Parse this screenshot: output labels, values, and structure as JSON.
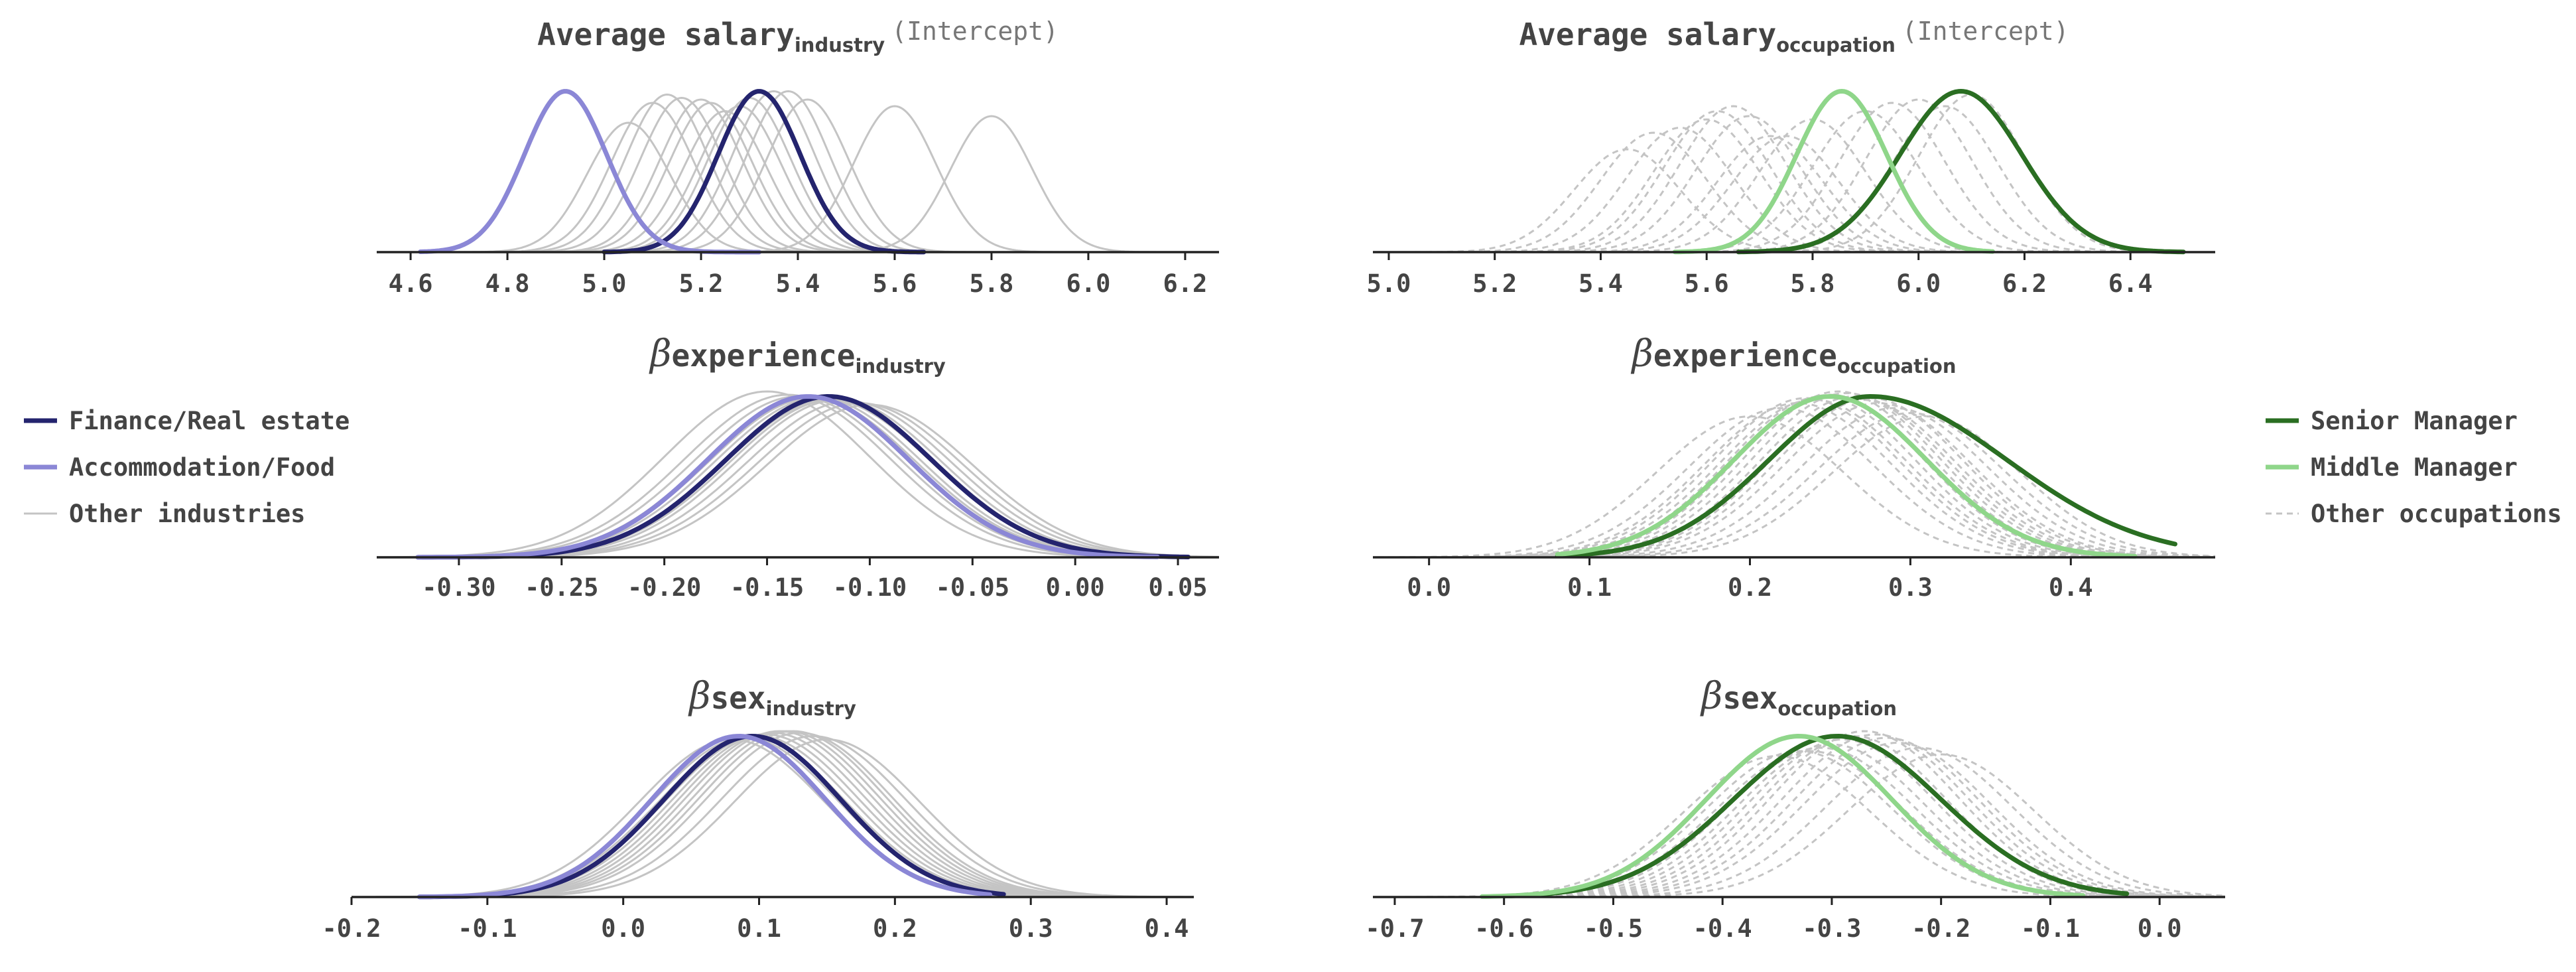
{
  "colors": {
    "finance": "#24246e",
    "accommodation": "#8b87d6",
    "senior": "#2a6e22",
    "middle": "#8fd68a",
    "other": "#c4c4c4"
  },
  "legends": [
    {
      "position": "left",
      "items": [
        {
          "label": "Finance/Real estate",
          "color": "#24246e",
          "style": "solid-thick"
        },
        {
          "label": "Accommodation/Food",
          "color": "#8b87d6",
          "style": "solid-thick"
        },
        {
          "label": "Other industries",
          "color": "#c4c4c4",
          "style": "solid-thin"
        }
      ]
    },
    {
      "position": "right",
      "items": [
        {
          "label": "Senior Manager",
          "color": "#2a6e22",
          "style": "solid-thick"
        },
        {
          "label": "Middle Manager",
          "color": "#8fd68a",
          "style": "solid-thick"
        },
        {
          "label": "Other occupations",
          "color": "#c4c4c4",
          "style": "dashed-thin"
        }
      ]
    }
  ],
  "chart_data": [
    {
      "type": "line",
      "panel": "top-left",
      "title": {
        "beta": "",
        "main": "Average salary",
        "sub": "industry",
        "extra": "(Intercept)"
      },
      "xlim": [
        4.53,
        6.27
      ],
      "ticks": [
        4.6,
        4.8,
        5.0,
        5.2,
        5.4,
        5.6,
        5.8,
        6.0,
        6.2
      ],
      "tick_labels": [
        "4.6",
        "4.8",
        "5.0",
        "5.2",
        "5.4",
        "5.6",
        "5.8",
        "6.0",
        "6.2"
      ],
      "highlight": [
        {
          "name": "Finance/Real estate",
          "color": "#24246e",
          "mean": 5.32,
          "sd": 0.085,
          "skew": 0,
          "range": [
            5.0,
            5.66
          ]
        },
        {
          "name": "Accommodation/Food",
          "color": "#8b87d6",
          "mean": 4.92,
          "sd": 0.085,
          "skew": 0,
          "range": [
            4.62,
            5.32
          ]
        }
      ],
      "others": {
        "color": "#c4c4c4",
        "dash": false,
        "sd": 0.085,
        "means": [
          5.05,
          5.1,
          5.13,
          5.16,
          5.2,
          5.22,
          5.25,
          5.28,
          5.3,
          5.35,
          5.38,
          5.42,
          5.6,
          5.8
        ],
        "peaks": [
          0.78,
          0.9,
          0.95,
          0.93,
          0.92,
          0.9,
          0.85,
          0.88,
          0.93,
          0.97,
          0.97,
          0.92,
          0.88,
          0.82
        ]
      }
    },
    {
      "type": "line",
      "panel": "top-right",
      "title": {
        "beta": "",
        "main": "Average salary",
        "sub": "occupation",
        "extra": "(Intercept)"
      },
      "xlim": [
        4.97,
        6.56
      ],
      "ticks": [
        5.0,
        5.2,
        5.4,
        5.6,
        5.8,
        6.0,
        6.2,
        6.4
      ],
      "tick_labels": [
        "5.0",
        "5.2",
        "5.4",
        "5.6",
        "5.8",
        "6.0",
        "6.2",
        "6.4"
      ],
      "highlight": [
        {
          "name": "Senior Manager",
          "color": "#2a6e22",
          "mean": 6.08,
          "sd": 0.115,
          "skew": 0,
          "range": [
            5.66,
            6.5
          ]
        },
        {
          "name": "Middle Manager",
          "color": "#8fd68a",
          "mean": 5.855,
          "sd": 0.085,
          "skew": 0,
          "range": [
            5.54,
            6.14
          ]
        }
      ],
      "others": {
        "color": "#c4c4c4",
        "dash": true,
        "sd": 0.1,
        "means": [
          5.45,
          5.5,
          5.6,
          5.62,
          5.65,
          5.68,
          5.72,
          5.8,
          5.9,
          5.95,
          6.0,
          6.05,
          6.1,
          5.55,
          5.75
        ],
        "peaks": [
          0.62,
          0.72,
          0.8,
          0.85,
          0.88,
          0.82,
          0.7,
          0.8,
          0.85,
          0.9,
          0.92,
          0.88,
          0.95,
          0.75,
          0.7
        ]
      }
    },
    {
      "type": "line",
      "panel": "middle-left",
      "title": {
        "beta": "β",
        "main": "experience",
        "sub": "industry",
        "extra": ""
      },
      "xlim": [
        -0.34,
        0.07
      ],
      "ticks": [
        -0.3,
        -0.25,
        -0.2,
        -0.15,
        -0.1,
        -0.05,
        0.0,
        0.05
      ],
      "tick_labels": [
        "-0.30",
        "-0.25",
        "-0.20",
        "-0.15",
        "-0.10",
        "-0.05",
        "0.00",
        "0.05"
      ],
      "highlight": [
        {
          "name": "Finance/Real estate",
          "color": "#24246e",
          "mean": -0.12,
          "sd": 0.05,
          "skew": 0,
          "range": [
            -0.32,
            0.055
          ]
        },
        {
          "name": "Accommodation/Food",
          "color": "#8b87d6",
          "mean": -0.13,
          "sd": 0.049,
          "skew": 0,
          "range": [
            -0.32,
            0.04
          ]
        }
      ],
      "others": {
        "color": "#c4c4c4",
        "dash": false,
        "sd": 0.05,
        "means": [
          -0.15,
          -0.14,
          -0.135,
          -0.13,
          -0.125,
          -0.12,
          -0.115,
          -0.11,
          -0.1,
          -0.105,
          -0.118,
          -0.128
        ],
        "peaks": [
          1.0,
          0.98,
          0.97,
          0.96,
          0.96,
          0.95,
          0.95,
          0.94,
          0.92,
          0.93,
          0.95,
          0.96
        ]
      }
    },
    {
      "type": "line",
      "panel": "middle-right",
      "title": {
        "beta": "β",
        "main": "experience",
        "sub": "occupation",
        "extra": ""
      },
      "xlim": [
        -0.035,
        0.49
      ],
      "ticks": [
        0.0,
        0.1,
        0.2,
        0.3,
        0.4
      ],
      "tick_labels": [
        "0.0",
        "0.1",
        "0.2",
        "0.3",
        "0.4"
      ],
      "highlight": [
        {
          "name": "Senior Manager",
          "color": "#2a6e22",
          "mean": 0.275,
          "sd": 0.063,
          "skew": 0.35,
          "range": [
            0.08,
            0.465
          ]
        },
        {
          "name": "Middle Manager",
          "color": "#8fd68a",
          "mean": 0.25,
          "sd": 0.06,
          "skew": 0,
          "range": [
            0.08,
            0.44
          ]
        }
      ],
      "others": {
        "color": "#c4c4c4",
        "dash": true,
        "sd": 0.058,
        "means": [
          0.2,
          0.22,
          0.23,
          0.24,
          0.245,
          0.25,
          0.255,
          0.26,
          0.265,
          0.27,
          0.28,
          0.29,
          0.3,
          0.31,
          0.235,
          0.275
        ],
        "peaks": [
          0.85,
          0.9,
          0.93,
          0.95,
          0.97,
          0.98,
          1.0,
          0.99,
          0.97,
          0.95,
          0.93,
          0.9,
          0.87,
          0.85,
          0.96,
          0.96
        ]
      }
    },
    {
      "type": "line",
      "panel": "bottom-left",
      "title": {
        "beta": "β",
        "main": "sex",
        "sub": "industry",
        "extra": ""
      },
      "xlim": [
        -0.2,
        0.42
      ],
      "ticks": [
        -0.2,
        -0.1,
        0.0,
        0.1,
        0.2,
        0.3,
        0.4
      ],
      "tick_labels": [
        "-0.2",
        "-0.1",
        "0.0",
        "0.1",
        "0.2",
        "0.3",
        "0.4"
      ],
      "highlight": [
        {
          "name": "Finance/Real estate",
          "color": "#24246e",
          "mean": 0.095,
          "sd": 0.065,
          "skew": 0,
          "range": [
            -0.15,
            0.28
          ]
        },
        {
          "name": "Accommodation/Food",
          "color": "#8b87d6",
          "mean": 0.085,
          "sd": 0.064,
          "skew": 0,
          "range": [
            -0.15,
            0.27
          ]
        }
      ],
      "others": {
        "color": "#c4c4c4",
        "dash": false,
        "sd": 0.068,
        "means": [
          0.08,
          0.09,
          0.1,
          0.105,
          0.11,
          0.115,
          0.12,
          0.125,
          0.13,
          0.14,
          0.15,
          0.095
        ],
        "peaks": [
          0.95,
          0.96,
          0.97,
          0.98,
          0.99,
          1.0,
          1.0,
          1.0,
          0.99,
          0.97,
          0.95,
          0.96
        ]
      }
    },
    {
      "type": "line",
      "panel": "bottom-right",
      "title": {
        "beta": "β",
        "main": "sex",
        "sub": "occupation",
        "extra": ""
      },
      "xlim": [
        -0.72,
        0.06
      ],
      "ticks": [
        -0.7,
        -0.6,
        -0.5,
        -0.4,
        -0.3,
        -0.2,
        -0.1,
        0.0
      ],
      "tick_labels": [
        "-0.7",
        "-0.6",
        "-0.5",
        "-0.4",
        "-0.3",
        "-0.2",
        "-0.1",
        "0.0"
      ],
      "highlight": [
        {
          "name": "Senior Manager",
          "color": "#2a6e22",
          "mean": -0.295,
          "sd": 0.095,
          "skew": 0,
          "range": [
            -0.6,
            -0.03
          ]
        },
        {
          "name": "Middle Manager",
          "color": "#8fd68a",
          "mean": -0.33,
          "sd": 0.085,
          "skew": 0,
          "range": [
            -0.62,
            -0.07
          ]
        }
      ],
      "others": {
        "color": "#c4c4c4",
        "dash": true,
        "sd": 0.085,
        "means": [
          -0.35,
          -0.33,
          -0.31,
          -0.3,
          -0.29,
          -0.28,
          -0.27,
          -0.26,
          -0.25,
          -0.24,
          -0.22,
          -0.2,
          -0.32
        ],
        "peaks": [
          0.85,
          0.88,
          0.9,
          0.92,
          0.95,
          0.97,
          1.0,
          0.98,
          0.96,
          0.93,
          0.9,
          0.86,
          0.88
        ]
      }
    }
  ]
}
